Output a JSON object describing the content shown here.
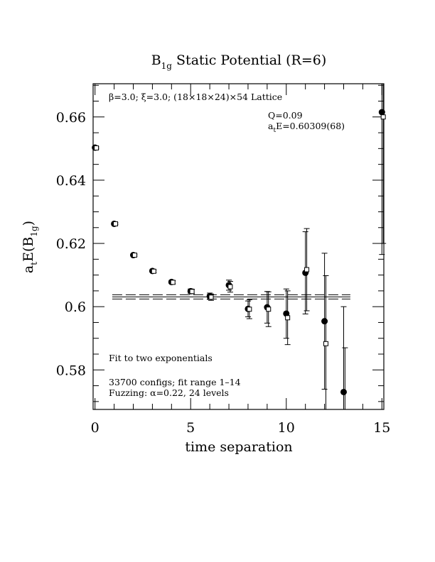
{
  "chart_data": {
    "type": "scatter",
    "title_main": "B",
    "title_sub": "1g",
    "title_rest": " Static Potential (R=6)",
    "xlabel": "time separation",
    "ylabel_main": "a",
    "ylabel_sub1": "t",
    "ylabel_mid": "E(B",
    "ylabel_sub2": "1g",
    "ylabel_end": ")",
    "xlim": [
      -0.1,
      15.1
    ],
    "ylim": [
      0.5675,
      0.6705
    ],
    "x_ticks": [
      0,
      5,
      10,
      15
    ],
    "x_tick_labels": [
      "0",
      "5",
      "10",
      "15"
    ],
    "y_ticks": [
      0.58,
      0.6,
      0.62,
      0.64,
      0.66
    ],
    "y_tick_labels": [
      "0.58",
      "0.6",
      "0.62",
      "0.64",
      "0.66"
    ],
    "annotations": {
      "lattice": "β=3.0; ξ=3.0; (18×18×24)×54 Lattice",
      "q_value": "Q=0.09",
      "energy_main": "a",
      "energy_sub": "t",
      "energy_rest": "E=0.60309(68)",
      "fit_type": "Fit to two exponentials",
      "configs": "33700 configs; fit range 1–14",
      "fuzzing": "Fuzzing: α=0.22, 24 levels"
    },
    "fit": {
      "value": 0.60309,
      "error": 0.00068,
      "x_range": [
        0.9,
        13.35
      ]
    },
    "series": [
      {
        "marker": "filled-circle",
        "points": [
          {
            "x": 0,
            "y": 0.6503,
            "err": 0.0003
          },
          {
            "x": 1,
            "y": 0.6262,
            "err": 0.0003
          },
          {
            "x": 2,
            "y": 0.6163,
            "err": 0.0003
          },
          {
            "x": 3,
            "y": 0.6113,
            "err": 0.0004
          },
          {
            "x": 4,
            "y": 0.6078,
            "err": 0.0005
          },
          {
            "x": 5,
            "y": 0.6049,
            "err": 0.0007
          },
          {
            "x": 6,
            "y": 0.6033,
            "err": 0.001
          },
          {
            "x": 7,
            "y": 0.6068,
            "err": 0.0016
          },
          {
            "x": 8,
            "y": 0.5993,
            "err": 0.0025
          },
          {
            "x": 9,
            "y": 0.5998,
            "err": 0.005
          },
          {
            "x": 10,
            "y": 0.5978,
            "err": 0.0078
          },
          {
            "x": 11,
            "y": 0.6107,
            "err": 0.013
          },
          {
            "x": 12,
            "y": 0.5954,
            "err": 0.0215
          },
          {
            "x": 13,
            "y": 0.573,
            "err": 0.027
          },
          {
            "x": 15,
            "y": 0.6615,
            "err": 0.045
          }
        ]
      },
      {
        "marker": "open-square",
        "points": [
          {
            "x": 0.07,
            "y": 0.6502,
            "err": 0.0003
          },
          {
            "x": 1.07,
            "y": 0.6262,
            "err": 0.0003
          },
          {
            "x": 2.07,
            "y": 0.6163,
            "err": 0.0003
          },
          {
            "x": 3.07,
            "y": 0.6112,
            "err": 0.0004
          },
          {
            "x": 4.07,
            "y": 0.6077,
            "err": 0.0005
          },
          {
            "x": 5.07,
            "y": 0.6048,
            "err": 0.0007
          },
          {
            "x": 6.07,
            "y": 0.603,
            "err": 0.001
          },
          {
            "x": 7.07,
            "y": 0.6063,
            "err": 0.0017
          },
          {
            "x": 8.07,
            "y": 0.5992,
            "err": 0.003
          },
          {
            "x": 9.07,
            "y": 0.5992,
            "err": 0.0055
          },
          {
            "x": 10.07,
            "y": 0.5965,
            "err": 0.0085
          },
          {
            "x": 11.07,
            "y": 0.6117,
            "err": 0.013
          },
          {
            "x": 12.07,
            "y": 0.5883,
            "err": 0.0215
          },
          {
            "x": 13.07,
            "y": 0.564,
            "err": 0.023
          },
          {
            "x": 15.07,
            "y": 0.66,
            "err": 0.04
          }
        ]
      }
    ]
  }
}
